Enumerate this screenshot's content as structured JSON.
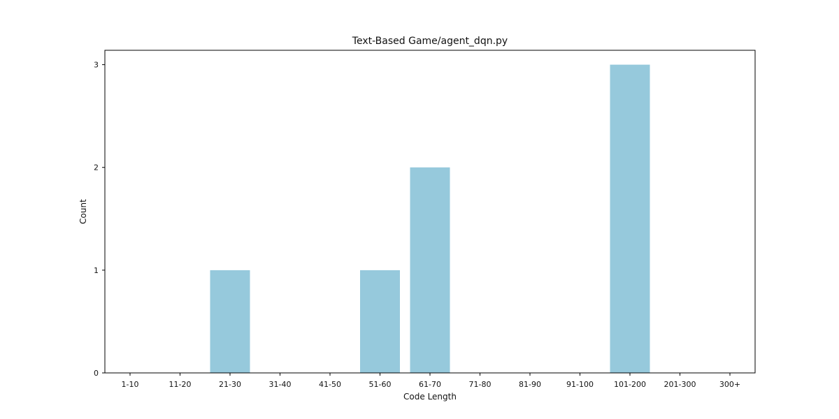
{
  "chart_data": {
    "type": "bar",
    "title": "Text-Based Game/agent_dqn.py",
    "xlabel": "Code Length",
    "ylabel": "Count",
    "categories": [
      "1-10",
      "11-20",
      "21-30",
      "31-40",
      "41-50",
      "51-60",
      "61-70",
      "71-80",
      "81-90",
      "91-100",
      "101-200",
      "201-300",
      "300+"
    ],
    "values": [
      0,
      0,
      1,
      0,
      0,
      1,
      2,
      0,
      0,
      0,
      3,
      0,
      0
    ],
    "ylim": [
      0,
      3.14
    ],
    "yticks": [
      0,
      1,
      2,
      3
    ],
    "grid": false,
    "bar_color": "#96c9dc"
  }
}
